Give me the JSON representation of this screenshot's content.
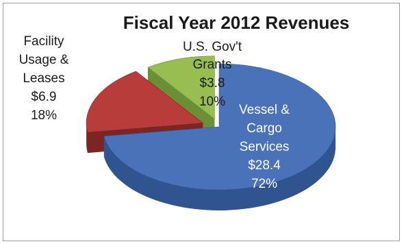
{
  "chart_data": {
    "type": "pie",
    "title": "Fiscal Year 2012 Revenues",
    "slices": [
      {
        "label_lines": [
          "Vessel &",
          "Cargo",
          "Services"
        ],
        "value_text": "$28.4",
        "percent_text": "72%",
        "value": 28.4,
        "percent": 72,
        "color": "#4a72b8",
        "side_color": "#2f5490"
      },
      {
        "label_lines": [
          "Facility",
          "Usage &",
          "Leases"
        ],
        "value_text": "$6.9",
        "percent_text": "18%",
        "value": 6.9,
        "percent": 18,
        "color": "#b83c3a",
        "side_color": "#7e2523"
      },
      {
        "label_lines": [
          "U.S. Gov't",
          "Grants"
        ],
        "value_text": "$3.8",
        "percent_text": "10%",
        "value": 3.8,
        "percent": 10,
        "color": "#98be52",
        "side_color": "#6b8f34"
      }
    ],
    "legend": "none",
    "style": "3d-exploded-pie"
  }
}
